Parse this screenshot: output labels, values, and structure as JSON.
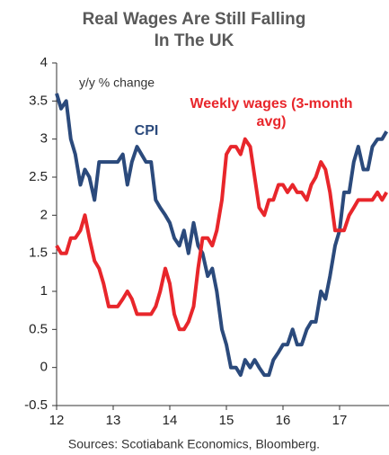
{
  "chart_data": {
    "type": "line",
    "title_lines": [
      "Real Wages Are Still Falling",
      "In The UK"
    ],
    "y_label": "y/y % change",
    "source": "Sources: Scotiabank Economics, Bloomberg.",
    "x": [
      12.0,
      12.08,
      12.17,
      12.25,
      12.33,
      12.42,
      12.5,
      12.58,
      12.67,
      12.75,
      12.83,
      12.92,
      13.0,
      13.08,
      13.17,
      13.25,
      13.33,
      13.42,
      13.5,
      13.58,
      13.67,
      13.75,
      13.83,
      13.92,
      14.0,
      14.08,
      14.17,
      14.25,
      14.33,
      14.42,
      14.5,
      14.58,
      14.67,
      14.75,
      14.83,
      14.92,
      15.0,
      15.08,
      15.17,
      15.25,
      15.33,
      15.42,
      15.5,
      15.58,
      15.67,
      15.75,
      15.83,
      15.92,
      16.0,
      16.08,
      16.17,
      16.25,
      16.33,
      16.42,
      16.5,
      16.58,
      16.67,
      16.75,
      16.83,
      16.92,
      17.0,
      17.08,
      17.17,
      17.25,
      17.33,
      17.42,
      17.5,
      17.58,
      17.67,
      17.75,
      17.83
    ],
    "series": [
      {
        "name": "CPI",
        "color": "#2b4a7c",
        "label_lines": [
          "CPI"
        ],
        "values": [
          3.6,
          3.4,
          3.5,
          3.0,
          2.8,
          2.4,
          2.6,
          2.5,
          2.2,
          2.7,
          2.7,
          2.7,
          2.7,
          2.7,
          2.8,
          2.4,
          2.7,
          2.9,
          2.8,
          2.7,
          2.7,
          2.2,
          2.1,
          2.0,
          1.9,
          1.7,
          1.6,
          1.8,
          1.5,
          1.9,
          1.6,
          1.5,
          1.2,
          1.3,
          1.0,
          0.5,
          0.3,
          0.0,
          0.0,
          -0.1,
          0.1,
          0.0,
          0.1,
          0.0,
          -0.1,
          -0.1,
          0.1,
          0.2,
          0.3,
          0.3,
          0.5,
          0.3,
          0.3,
          0.5,
          0.6,
          0.6,
          1.0,
          0.9,
          1.2,
          1.6,
          1.8,
          2.3,
          2.3,
          2.7,
          2.9,
          2.6,
          2.6,
          2.9,
          3.0,
          3.0,
          3.1
        ]
      },
      {
        "name": "Weekly wages (3-month avg)",
        "color": "#e8262b",
        "label_lines": [
          "Weekly wages (3-month",
          "avg)"
        ],
        "values": [
          1.6,
          1.5,
          1.5,
          1.7,
          1.7,
          1.8,
          2.0,
          1.7,
          1.4,
          1.3,
          1.1,
          0.8,
          0.8,
          0.8,
          0.9,
          1.0,
          0.9,
          0.7,
          0.7,
          0.7,
          0.7,
          0.8,
          1.0,
          1.3,
          1.1,
          0.7,
          0.5,
          0.5,
          0.6,
          0.8,
          1.3,
          1.7,
          1.7,
          1.6,
          1.8,
          2.2,
          2.8,
          2.9,
          2.9,
          2.8,
          3.0,
          2.9,
          2.5,
          2.1,
          2.0,
          2.2,
          2.2,
          2.4,
          2.4,
          2.3,
          2.4,
          2.3,
          2.3,
          2.2,
          2.4,
          2.5,
          2.7,
          2.6,
          2.3,
          1.8,
          1.8,
          1.8,
          2.0,
          2.1,
          2.2,
          2.2,
          2.2,
          2.2,
          2.3,
          2.2,
          2.3
        ]
      }
    ],
    "xlim": [
      12,
      17.9
    ],
    "xticks": [
      12,
      13,
      14,
      15,
      16,
      17
    ],
    "ylim": [
      -0.5,
      4
    ],
    "yticks": [
      -0.5,
      0,
      0.5,
      1,
      1.5,
      2,
      2.5,
      3,
      3.5,
      4
    ],
    "grid": false
  }
}
